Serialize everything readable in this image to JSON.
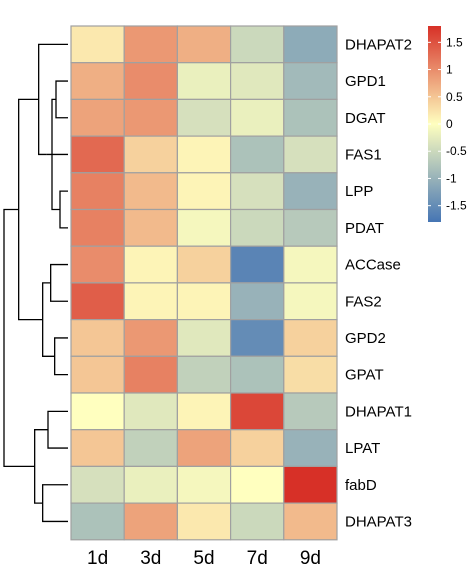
{
  "chart_data": {
    "type": "heatmap",
    "title": "",
    "xlabel": "",
    "ylabel": "",
    "columns": [
      "1d",
      "3d",
      "5d",
      "7d",
      "9d"
    ],
    "rows": [
      "DHAPAT2",
      "GPD1",
      "DGAT",
      "FAS1",
      "LPP",
      "PDAT",
      "ACCase",
      "FAS2",
      "GPD2",
      "GPAT",
      "DHAPAT1",
      "LPAT",
      "fabD",
      "DHAPAT3"
    ],
    "values": [
      [
        0.2,
        0.9,
        0.7,
        -0.5,
        -1.1
      ],
      [
        0.7,
        1.0,
        -0.2,
        -0.3,
        -0.9
      ],
      [
        0.8,
        0.9,
        -0.4,
        -0.2,
        -0.8
      ],
      [
        1.3,
        0.4,
        0.1,
        -0.8,
        -0.4
      ],
      [
        1.1,
        0.6,
        0.1,
        -0.4,
        -1.0
      ],
      [
        1.1,
        0.6,
        -0.1,
        -0.5,
        -0.7
      ],
      [
        1.0,
        0.1,
        0.4,
        -1.6,
        -0.1
      ],
      [
        1.4,
        0.1,
        0.1,
        -1.0,
        -0.1
      ],
      [
        0.5,
        0.9,
        -0.3,
        -1.5,
        0.4
      ],
      [
        0.5,
        1.1,
        -0.6,
        -0.8,
        0.3
      ],
      [
        0.0,
        -0.3,
        0.1,
        1.6,
        -0.7
      ],
      [
        0.5,
        -0.6,
        0.8,
        0.4,
        -1.0
      ],
      [
        -0.4,
        -0.2,
        -0.1,
        0.0,
        1.8
      ],
      [
        -0.8,
        0.8,
        0.2,
        -0.5,
        0.6
      ]
    ],
    "color_scale": {
      "min": -1.8,
      "max": 1.8,
      "low_color": "#4575b4",
      "mid_color": "#ffffbf",
      "high_color": "#d73027",
      "cell_border": "#a0a0a0"
    },
    "legend": {
      "position": "right",
      "ticks": [
        "1.5",
        "1",
        "0.5",
        "0",
        "-0.5",
        "-1",
        "-1.5"
      ],
      "tick_values": [
        1.5,
        1,
        0.5,
        0,
        -0.5,
        -1,
        -1.5
      ]
    },
    "row_dendrogram": {
      "merges": [
        [
          4,
          5,
          0.3
        ],
        [
          1,
          2,
          0.45
        ],
        [
          -1,
          -2,
          0.6
        ],
        [
          3,
          -3,
          0.8
        ],
        [
          0,
          -4,
          1.1
        ],
        [
          8,
          9,
          0.5
        ],
        [
          6,
          7,
          0.65
        ],
        [
          -7,
          -6,
          0.95
        ],
        [
          -5,
          -8,
          1.85
        ],
        [
          10,
          11,
          0.75
        ],
        [
          12,
          13,
          0.95
        ],
        [
          -10,
          -11,
          1.25
        ],
        [
          -9,
          -12,
          2.4
        ]
      ]
    }
  }
}
